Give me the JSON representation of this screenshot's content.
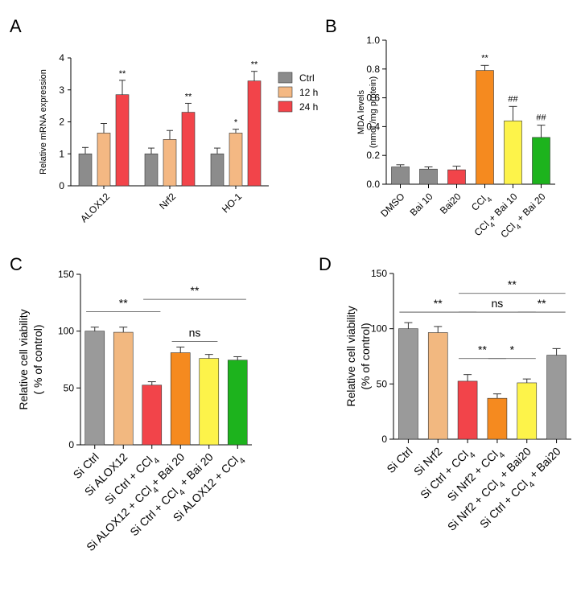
{
  "panels": {
    "A": {
      "letter": "A"
    },
    "B": {
      "letter": "B"
    },
    "C": {
      "letter": "C"
    },
    "D": {
      "letter": "D"
    }
  },
  "chart_data": [
    {
      "id": "A",
      "type": "bar",
      "ylabel": "Relative mRNA expression",
      "ylim": [
        0,
        4
      ],
      "yticks": [
        0,
        1,
        2,
        3,
        4
      ],
      "categories": [
        "ALOX12",
        "Nrf2",
        "HO-1"
      ],
      "series": [
        {
          "name": "Ctrl",
          "color": "#8c8c8c",
          "values": [
            1.0,
            1.0,
            1.0
          ],
          "errors": [
            0.2,
            0.18,
            0.18
          ],
          "sig": [
            "",
            "",
            ""
          ]
        },
        {
          "name": "12 h",
          "color": "#f4b883",
          "values": [
            1.65,
            1.45,
            1.65
          ],
          "errors": [
            0.3,
            0.28,
            0.12
          ],
          "sig": [
            "",
            "",
            "*"
          ]
        },
        {
          "name": "24 h",
          "color": "#f2444a",
          "values": [
            2.85,
            2.3,
            3.28
          ],
          "errors": [
            0.45,
            0.28,
            0.3
          ],
          "sig": [
            "**",
            "**",
            "**"
          ]
        }
      ],
      "legend": "right"
    },
    {
      "id": "B",
      "type": "bar",
      "ylabel_line1": "MDA levels",
      "ylabel_line2": "(nmol /mg protein)",
      "ylim": [
        0,
        1.0
      ],
      "yticks": [
        "0.0",
        "0.2",
        "0.4",
        "0.6",
        "0.8",
        "1.0"
      ],
      "categories": [
        "DMSO",
        "Bai 10",
        "Bai20",
        "CCl4",
        "CCl4+ Bai 10",
        "CCl4 + Bai 20"
      ],
      "values": [
        0.12,
        0.105,
        0.1,
        0.79,
        0.44,
        0.325
      ],
      "errors": [
        0.015,
        0.015,
        0.025,
        0.035,
        0.1,
        0.085
      ],
      "colors": [
        "#8c8c8c",
        "#8c8c8c",
        "#f2444a",
        "#f58a1f",
        "#fdf34a",
        "#1db31d"
      ],
      "sig": [
        "",
        "",
        "",
        "**",
        "##",
        "##"
      ]
    },
    {
      "id": "C",
      "type": "bar",
      "ylabel_line1": "Relative cell viability",
      "ylabel_line2": "( % of control)",
      "ylim": [
        0,
        150
      ],
      "yticks": [
        0,
        50,
        100,
        150
      ],
      "categories": [
        "Si Ctrl",
        "Si ALOX12",
        "Si Ctrl + CCl4",
        "Si ALOX12 + CCl4+ Bai 20",
        "Si Ctrl + CCl4 + Bai 20",
        "Si ALOX12 + CCl4"
      ],
      "values": [
        100,
        99,
        52.5,
        81,
        76,
        74.5
      ],
      "errors": [
        3.5,
        4.5,
        3.0,
        5.0,
        3.5,
        3.0
      ],
      "colors": [
        "#9a9a9a",
        "#f2b880",
        "#f2444a",
        "#f58a1f",
        "#fdf34a",
        "#1db31d"
      ],
      "comparisons": [
        {
          "from": 0,
          "to": 2,
          "label": "**",
          "y": 117
        },
        {
          "from": 2,
          "to": 5,
          "label": "**",
          "y": 128
        },
        {
          "from": 3,
          "to": 4,
          "label": "ns",
          "y": 91
        }
      ]
    },
    {
      "id": "D",
      "type": "bar",
      "ylabel_line1": "Relative cell viability",
      "ylabel_line2": "(% of control)",
      "ylim": [
        0,
        150
      ],
      "yticks": [
        0,
        50,
        100,
        150
      ],
      "categories": [
        "Si Ctrl",
        "Si Nrf2",
        "Si Ctrl + CCl4",
        "Si Nrf2 + CCl4",
        "Si Nrf2 + CCl4 + Bai20",
        "Si Ctrl + CCl4 + Bai20"
      ],
      "values": [
        100,
        96.5,
        52.5,
        37,
        51,
        76
      ],
      "errors": [
        5.5,
        5.5,
        6.0,
        4.0,
        3.5,
        6.0
      ],
      "colors": [
        "#9a9a9a",
        "#f2b880",
        "#f2444a",
        "#f58a1f",
        "#fdf34a",
        "#9a9a9a"
      ],
      "comparisons": [
        {
          "from": 0,
          "to": 2,
          "label": "**",
          "y": 115
        },
        {
          "from": 2,
          "to": 4,
          "label": "ns",
          "y": 115
        },
        {
          "from": 2,
          "to": 5,
          "label": "**",
          "y": 132
        },
        {
          "from": 2,
          "to": 3,
          "label": "**",
          "y": 73
        },
        {
          "from": 3,
          "to": 4,
          "label": "*",
          "y": 73
        },
        {
          "from": 4,
          "to": 5,
          "label": "**",
          "y": 115
        }
      ]
    }
  ]
}
